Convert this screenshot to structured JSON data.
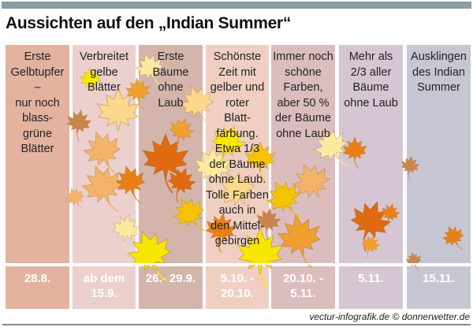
{
  "header": {
    "title": "Aussichten auf den „Indian Summer“"
  },
  "columns": [
    {
      "lines": [
        "Erste",
        "Gelbtupfer",
        "–",
        "nur noch",
        "blass-",
        "grüne",
        "Blätter"
      ],
      "date": [
        "28.8."
      ],
      "color": "#e3b3a0"
    },
    {
      "lines": [
        "Verbreitet",
        "gelbe",
        "Blätter"
      ],
      "date": [
        "ab dem",
        "15.9."
      ],
      "color": "#ebd0cd"
    },
    {
      "lines": [
        "Erste",
        "Bäume",
        "ohne",
        "Laub"
      ],
      "date": [
        "26.- 29.9."
      ],
      "color": "#d4b5ab"
    },
    {
      "lines": [
        "Schönste",
        "Zeit mit",
        "gelber und",
        "roter",
        "Blatt-",
        "färbung.",
        "Etwa 1/3",
        "der Bäume",
        "ohne Laub.",
        "Tolle Farben",
        "auch in",
        "den Mittel-",
        "gebirgen"
      ],
      "date": [
        "5.10. -",
        "20.10."
      ],
      "color": "#f0cfc2"
    },
    {
      "lines": [
        "Immer noch",
        "schöne",
        "Farben,",
        "aber 50 %",
        "der Bäume",
        "ohne Laub"
      ],
      "date": [
        "20.10. -",
        "5.11."
      ],
      "color": "#dcbdbf"
    },
    {
      "lines": [
        "Mehr als",
        "2/3 aller",
        "Bäume",
        "ohne Laub"
      ],
      "date": [
        "5.11."
      ],
      "color": "#d6c6d3"
    },
    {
      "lines": [
        "Ausklingen",
        "des Indian",
        "Summer"
      ],
      "date": [
        "15.11."
      ],
      "color": "#c7c7d3"
    }
  ],
  "footer": {
    "credit": "vectur-infografik.de © donnerwetter.de"
  },
  "leaf_colors": [
    "#f7e600",
    "#f5c400",
    "#f0a030",
    "#e8801a",
    "#c8864e",
    "#fcd98a",
    "#fbe9a0",
    "#e06a10",
    "#f3b46a"
  ]
}
